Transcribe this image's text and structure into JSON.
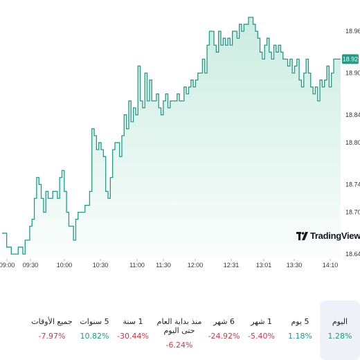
{
  "chart_data": {
    "type": "area",
    "title": "",
    "xlabel": "",
    "ylabel": "",
    "x_ticks": [
      "09:00",
      "09:30",
      "10:00",
      "10:30",
      "11:00",
      "11:30",
      "12:00",
      "12:31",
      "13:01",
      "13:30",
      "14:10"
    ],
    "y_ticks": [
      18.64,
      18.7,
      18.74,
      18.8,
      18.84,
      18.9,
      18.96
    ],
    "ylim": [
      18.635,
      18.985
    ],
    "last_price": "18.92",
    "line_color": "#1f9c85",
    "fill_color": "#c8ebe0",
    "tag_color": "#1f9c85",
    "series": [
      {
        "values": [
          18.67,
          18.67,
          18.65,
          18.65,
          18.64,
          18.64,
          18.64,
          18.65,
          18.65,
          18.64,
          18.66,
          18.66,
          18.68,
          18.69,
          18.72,
          18.75,
          18.74,
          18.72,
          18.7,
          18.73,
          18.72,
          18.72,
          18.73,
          18.73,
          18.72,
          18.75,
          18.76,
          18.73,
          18.7,
          18.68,
          18.68,
          18.66,
          18.69,
          18.7,
          18.7,
          18.7,
          18.71,
          18.71,
          18.73,
          18.82,
          18.81,
          18.79,
          18.8,
          18.79,
          18.78,
          18.73,
          18.72,
          18.75,
          18.79,
          18.8,
          18.8,
          18.78,
          18.81,
          18.84,
          18.82,
          18.86,
          18.83,
          18.85,
          18.84,
          18.91,
          18.86,
          18.85,
          18.9,
          18.86,
          18.89,
          18.86,
          18.86,
          18.87,
          18.85,
          18.84,
          18.86,
          18.87,
          18.85,
          18.86,
          18.86,
          18.86,
          18.87,
          18.86,
          18.86,
          18.88,
          18.87,
          18.88,
          18.89,
          18.88,
          18.89,
          18.9,
          18.9,
          18.92,
          18.9,
          18.94,
          18.96,
          18.96,
          18.94,
          18.93,
          18.96,
          18.94,
          18.95,
          18.94,
          18.95,
          18.94,
          18.96,
          18.96,
          18.95,
          18.97,
          18.96,
          18.97,
          18.97,
          18.98,
          18.98,
          18.97,
          18.96,
          18.95,
          18.93,
          18.92,
          18.94,
          18.95,
          18.93,
          18.92,
          18.94,
          18.93,
          18.94,
          18.93,
          18.92,
          18.92,
          18.91,
          18.92,
          18.9,
          18.91,
          18.92,
          18.89,
          18.88,
          18.9,
          18.92,
          18.9,
          18.88,
          18.87,
          18.88,
          18.86,
          18.89,
          18.88,
          18.89,
          18.91,
          18.88,
          18.9,
          18.92,
          18.92,
          18.92,
          18.92
        ]
      }
    ]
  },
  "brand": {
    "name": "TradingView"
  },
  "periods": [
    {
      "label": "اليوم",
      "value": "1.28%",
      "sign": "pos",
      "active": true
    },
    {
      "label": "5 يوم",
      "value": "1.18%",
      "sign": "pos",
      "active": false
    },
    {
      "label": "1 شهر",
      "value": "5.40%-",
      "sign": "neg",
      "active": false
    },
    {
      "label": "6 شهر",
      "value": "24.92%-",
      "sign": "neg",
      "active": false
    },
    {
      "label": "منذ بداية العام حتى اليوم",
      "value": "6.24%-",
      "sign": "neg",
      "active": false
    },
    {
      "label": "1 سنة",
      "value": "30.44%-",
      "sign": "neg",
      "active": false
    },
    {
      "label": "5 سنوات",
      "value": "10.82%",
      "sign": "pos",
      "active": false
    },
    {
      "label": "جميع الأوقات",
      "value": "7.97%-",
      "sign": "neg",
      "active": false
    }
  ]
}
